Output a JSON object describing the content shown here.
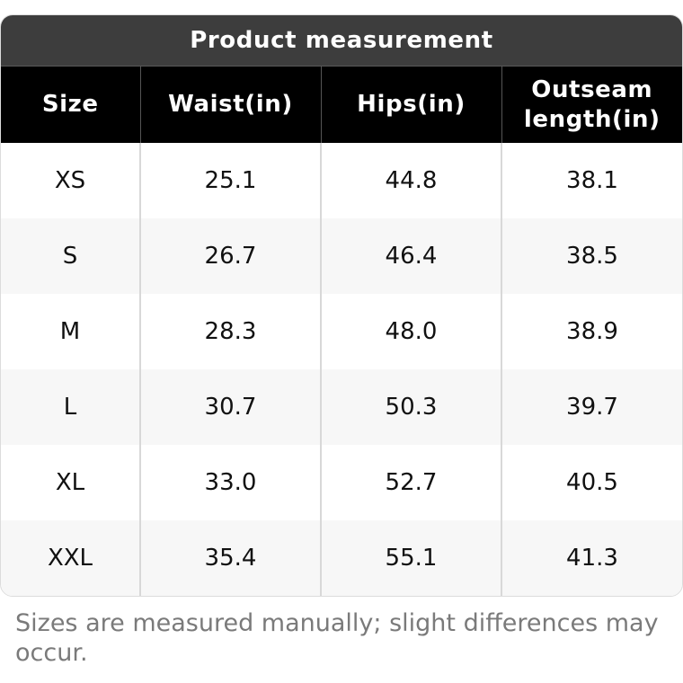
{
  "title": "Product measurement",
  "columns": [
    "Size",
    "Waist(in)",
    "Hips(in)",
    "Outseam length(in)"
  ],
  "rows": [
    [
      "XS",
      "25.1",
      "44.8",
      "38.1"
    ],
    [
      "S",
      "26.7",
      "46.4",
      "38.5"
    ],
    [
      "M",
      "28.3",
      "48.0",
      "38.9"
    ],
    [
      "L",
      "30.7",
      "50.3",
      "39.7"
    ],
    [
      "XL",
      "33.0",
      "52.7",
      "40.5"
    ],
    [
      "XXL",
      "35.4",
      "55.1",
      "41.3"
    ]
  ],
  "note": "Sizes are measured manually; slight differences may occur.",
  "colors": {
    "title_bg": "#3d3d3d",
    "header_bg": "#000000",
    "row_alt_bg": "#f7f7f7",
    "note_text": "#7a7a7a"
  }
}
